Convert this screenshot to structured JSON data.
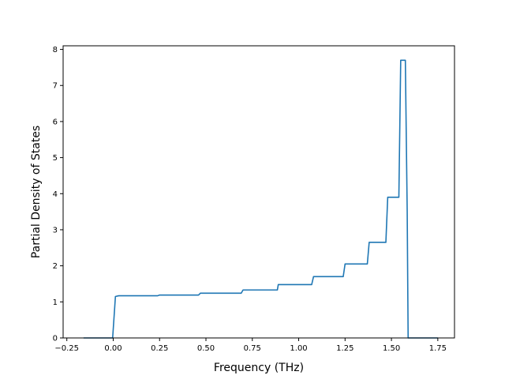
{
  "chart_data": {
    "type": "line",
    "title": "",
    "xlabel": "Frequency (THz)",
    "ylabel": "Partial Density of States",
    "xlim": [
      -0.25,
      1.85
    ],
    "ylim": [
      0,
      8.1
    ],
    "grid": false,
    "legend": "none",
    "color": "#1f77b4",
    "x_ticks": [
      -0.25,
      0.0,
      0.25,
      0.5,
      0.75,
      1.0,
      1.25,
      1.5,
      1.75
    ],
    "x_tick_labels": [
      "−0.25",
      "0.00",
      "0.25",
      "0.50",
      "0.75",
      "1.00",
      "1.25",
      "1.50",
      "1.75"
    ],
    "y_ticks": [
      0,
      1,
      2,
      3,
      4,
      5,
      6,
      7,
      8
    ],
    "y_tick_labels": [
      "0",
      "1",
      "2",
      "3",
      "4",
      "5",
      "6",
      "7",
      "8"
    ],
    "series": [
      {
        "x": [
          -0.16,
          -0.003,
          0.012,
          0.03,
          0.24,
          0.25,
          0.46,
          0.47,
          0.69,
          0.7,
          0.885,
          0.89,
          1.07,
          1.08,
          1.24,
          1.25,
          1.37,
          1.38,
          1.47,
          1.48,
          1.54,
          1.55,
          1.575,
          1.585,
          1.59,
          1.75
        ],
        "y": [
          0,
          0,
          1.15,
          1.17,
          1.17,
          1.19,
          1.19,
          1.24,
          1.24,
          1.33,
          1.33,
          1.48,
          1.48,
          1.7,
          1.7,
          2.05,
          2.05,
          2.65,
          2.65,
          3.9,
          3.9,
          7.7,
          7.7,
          3.5,
          0,
          0
        ]
      }
    ]
  }
}
